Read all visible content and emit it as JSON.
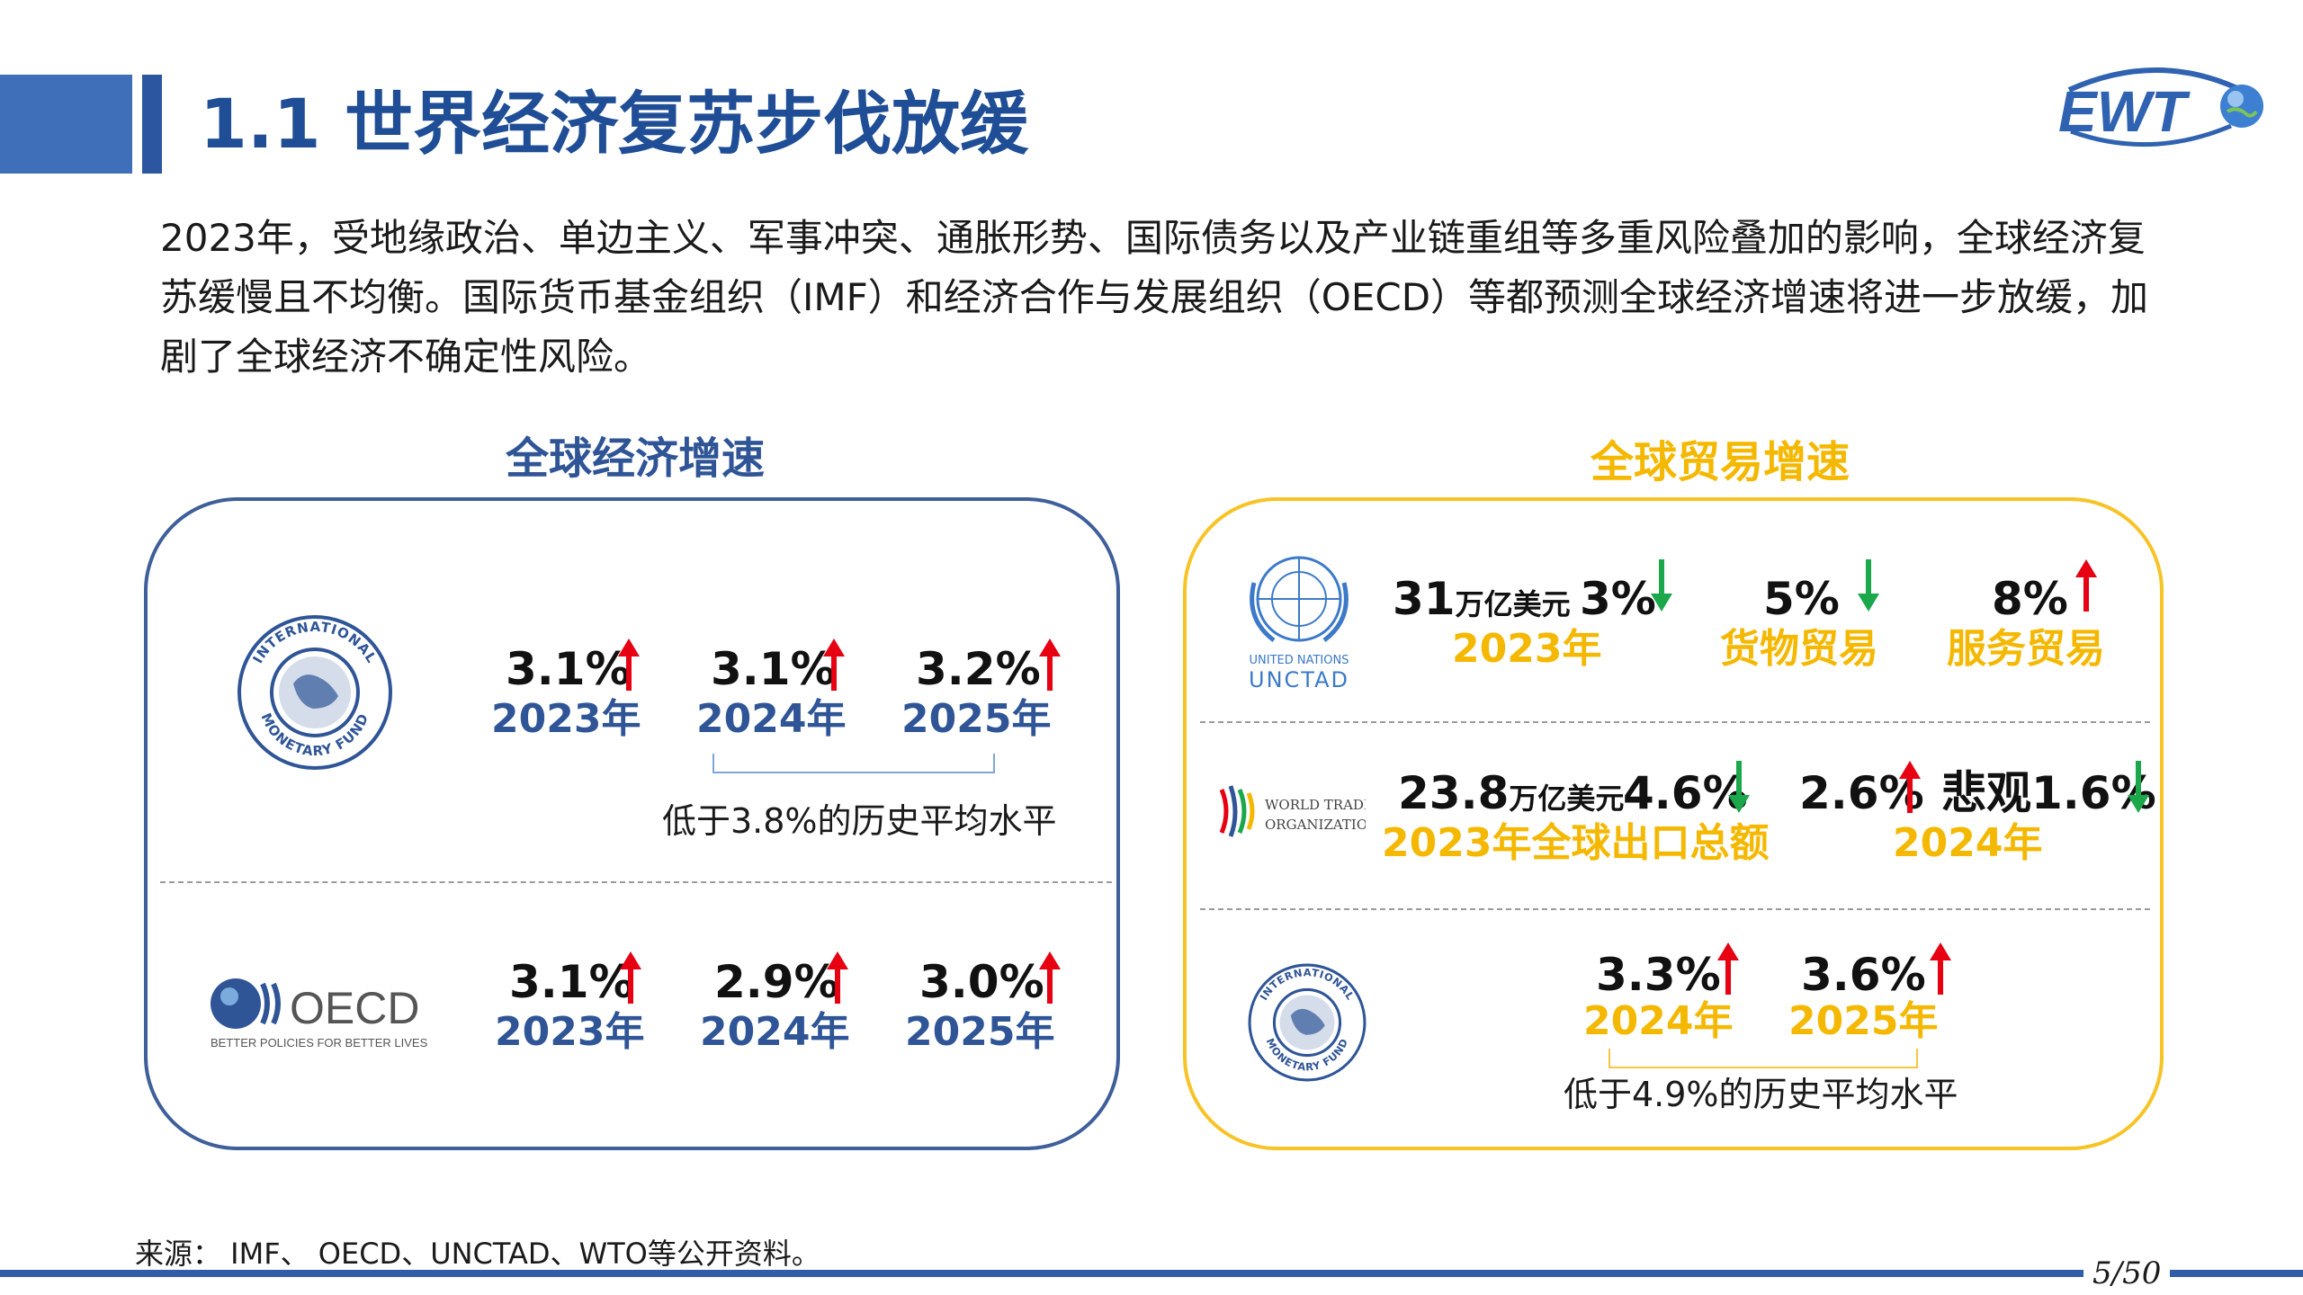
{
  "header": {
    "title": "1.1 世界经济复苏步伐放缓",
    "logo_text": "EWT"
  },
  "intro": "2023年，受地缘政治、单边主义、军事冲突、通胀形势、国际债务以及产业链重组等多重风险叠加的影响，全球经济复苏缓慢且不均衡。国际货币基金组织（IMF）和经济合作与发展组织（OECD）等都预测全球经济增速将进一步放缓，加剧了全球经济不确定性风险。",
  "left_section": {
    "title": "全球经济增速",
    "imf": {
      "logo_top": "INTERNATIONAL",
      "logo_bottom": "MONETARY FUND",
      "items": [
        {
          "value": "3.1%",
          "year": "2023年",
          "trend": "up"
        },
        {
          "value": "3.1%",
          "year": "2024年",
          "trend": "up"
        },
        {
          "value": "3.2%",
          "year": "2025年",
          "trend": "up"
        }
      ],
      "note": "低于3.8%的历史平均水平"
    },
    "oecd": {
      "logo_name": "OECD",
      "logo_tagline": "BETTER POLICIES FOR BETTER LIVES",
      "items": [
        {
          "value": "3.1%",
          "year": "2023年",
          "trend": "up"
        },
        {
          "value": "2.9%",
          "year": "2024年",
          "trend": "up"
        },
        {
          "value": "3.0%",
          "year": "2025年",
          "trend": "up"
        }
      ]
    }
  },
  "right_section": {
    "title": "全球贸易增速",
    "unctad": {
      "logo_line1": "UNITED NATIONS",
      "logo_line2": "UNCTAD",
      "total_number": "31",
      "total_unit": "万亿美元",
      "total_pct": "3%",
      "total_trend": "down",
      "total_label": "2023年",
      "goods_value": "5%",
      "goods_trend": "down",
      "goods_label": "货物贸易",
      "services_value": "8%",
      "services_trend": "up",
      "services_label": "服务贸易"
    },
    "wto": {
      "logo_line1": "WORLD TRADE",
      "logo_line2": "ORGANIZATION",
      "export_number": "23.8",
      "export_unit": "万亿美元",
      "export_pct": "4.6%",
      "export_trend": "down",
      "export_label": "2023年全球出口总额",
      "forecast_value": "2.6%",
      "forecast_trend": "up",
      "pessimistic_value": "悲观1.6%",
      "pessimistic_trend": "down",
      "forecast_label": "2024年"
    },
    "imf": {
      "logo_top": "INTERNATIONAL",
      "logo_bottom": "MONETARY FUND",
      "items": [
        {
          "value": "3.3%",
          "year": "2024年",
          "trend": "up"
        },
        {
          "value": "3.6%",
          "year": "2025年",
          "trend": "up"
        }
      ],
      "note": "低于4.9%的历史平均水平"
    }
  },
  "footer": {
    "source": "来源： IMF、 OECD、UNCTAD、WTO等公开资料。",
    "page": "5/50"
  },
  "colors": {
    "blue": "#2f5597",
    "gold": "#f5b800",
    "up_arrow": "#e60012",
    "down_arrow": "#1aa84a"
  }
}
